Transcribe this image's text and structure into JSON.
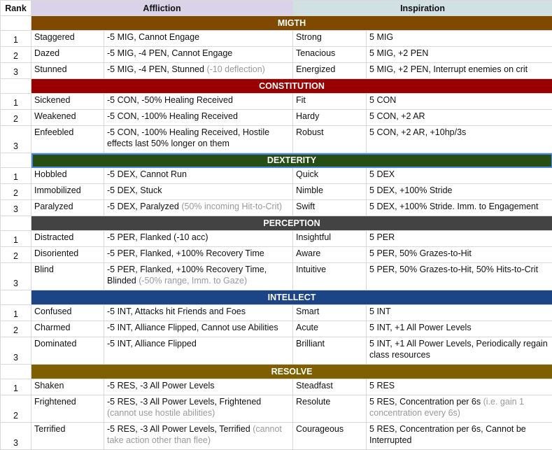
{
  "header": {
    "rank": "Rank",
    "affliction": "Affliction",
    "inspiration": "Inspiration"
  },
  "sections": [
    {
      "title": "MIGTH",
      "color": "#7f4a00",
      "rows": [
        {
          "rank": "1",
          "affliction": "Staggered",
          "affliction_effect": "-5 MIG, Cannot Engage",
          "affliction_note": "",
          "inspiration": "Strong",
          "inspiration_effect": "5 MIG",
          "inspiration_note": ""
        },
        {
          "rank": "2",
          "affliction": "Dazed",
          "affliction_effect": "-5 MIG, -4 PEN, Cannot Engage",
          "affliction_note": "",
          "inspiration": "Tenacious",
          "inspiration_effect": "5 MIG, +2 PEN",
          "inspiration_note": ""
        },
        {
          "rank": "3",
          "affliction": "Stunned",
          "affliction_effect": "-5 MIG, -4 PEN, Stunned",
          "affliction_note": "(-10 deflection)",
          "inspiration": "Energized",
          "inspiration_effect": "5 MIG, +2 PEN, Interrupt enemies on crit",
          "inspiration_note": ""
        }
      ]
    },
    {
      "title": "CONSTITUTION",
      "color": "#990000",
      "rows": [
        {
          "rank": "1",
          "affliction": "Sickened",
          "affliction_effect": "-5 CON, -50% Healing Received",
          "affliction_note": "",
          "inspiration": "Fit",
          "inspiration_effect": "5 CON",
          "inspiration_note": ""
        },
        {
          "rank": "2",
          "affliction": "Weakened",
          "affliction_effect": "-5 CON, -100% Healing Received",
          "affliction_note": "",
          "inspiration": "Hardy",
          "inspiration_effect": "5 CON, +2 AR",
          "inspiration_note": ""
        },
        {
          "rank": "3",
          "affliction": "Enfeebled",
          "affliction_effect": "-5 CON, -100% Healing Received, Hostile effects last 50% longer on them",
          "affliction_note": "",
          "inspiration": "Robust",
          "inspiration_effect": "5 CON, +2 AR, +10hp/3s",
          "inspiration_note": "",
          "tall": true
        }
      ]
    },
    {
      "title": "DEXTERITY",
      "color": "#274e13",
      "rows": [
        {
          "rank": "1",
          "affliction": "Hobbled",
          "affliction_effect": "-5 DEX, Cannot Run",
          "affliction_note": "",
          "inspiration": "Quick",
          "inspiration_effect": "5 DEX",
          "inspiration_note": ""
        },
        {
          "rank": "2",
          "affliction": "Immobilized",
          "affliction_effect": "-5 DEX, Stuck",
          "affliction_note": "",
          "inspiration": "Nimble",
          "inspiration_effect": "5 DEX, +100% Stride",
          "inspiration_note": ""
        },
        {
          "rank": "3",
          "affliction": "Paralyzed",
          "affliction_effect": "-5 DEX, Paralyzed",
          "affliction_note": "(50% incoming Hit-to-Crit)",
          "inspiration": "Swift",
          "inspiration_effect": "5 DEX, +100% Stride. Imm. to Engagement",
          "inspiration_note": ""
        }
      ]
    },
    {
      "title": "PERCEPTION",
      "color": "#434343",
      "rows": [
        {
          "rank": "1",
          "affliction": "Distracted",
          "affliction_effect": "-5 PER, Flanked (-10 acc)",
          "affliction_note": "",
          "inspiration": "Insightful",
          "inspiration_effect": "5 PER",
          "inspiration_note": ""
        },
        {
          "rank": "2",
          "affliction": "Disoriented",
          "affliction_effect": "-5 PER, Flanked, +100% Recovery Time",
          "affliction_note": "",
          "inspiration": "Aware",
          "inspiration_effect": "5 PER, 50% Grazes-to-Hit",
          "inspiration_note": ""
        },
        {
          "rank": "3",
          "affliction": "Blind",
          "affliction_effect": "-5 PER, Flanked, +100% Recovery Time, Blinded",
          "affliction_note": "(-50% range, Imm. to Gaze)",
          "inspiration": "Intuitive",
          "inspiration_effect": "5 PER, 50% Grazes-to-Hit, 50% Hits-to-Crit",
          "inspiration_note": "",
          "tall": true
        }
      ]
    },
    {
      "title": "INTELLECT",
      "color": "#1c4587",
      "rows": [
        {
          "rank": "1",
          "affliction": "Confused",
          "affliction_effect": "-5 INT, Attacks hit Friends and Foes",
          "affliction_note": "",
          "inspiration": "Smart",
          "inspiration_effect": "5 INT",
          "inspiration_note": ""
        },
        {
          "rank": "2",
          "affliction": "Charmed",
          "affliction_effect": "-5 INT, Alliance Flipped, Cannot use Abilities",
          "affliction_note": "",
          "inspiration": "Acute",
          "inspiration_effect": "5 INT, +1 All Power Levels",
          "inspiration_note": ""
        },
        {
          "rank": "3",
          "affliction": "Dominated",
          "affliction_effect": "-5 INT, Alliance Flipped",
          "affliction_note": "",
          "inspiration": "Brilliant",
          "inspiration_effect": "5 INT, +1 All Power Levels, Periodically regain class resources",
          "inspiration_note": "",
          "tall": true
        }
      ]
    },
    {
      "title": "RESOLVE",
      "color": "#7f6000",
      "rows": [
        {
          "rank": "1",
          "affliction": "Shaken",
          "affliction_effect": "-5 RES, -3 All Power Levels",
          "affliction_note": "",
          "inspiration": "Steadfast",
          "inspiration_effect": "5 RES",
          "inspiration_note": ""
        },
        {
          "rank": "2",
          "affliction": "Frightened",
          "affliction_effect": "-5 RES, -3 All Power Levels, Frightened",
          "affliction_note": "(cannot use hostile abilities)",
          "inspiration": "Resolute",
          "inspiration_effect": "5 RES, Concentration per 6s",
          "inspiration_note": "(i.e. gain 1 concentration every 6s)",
          "tall": true
        },
        {
          "rank": "3",
          "affliction": "Terrified",
          "affliction_effect": "-5 RES, -3 All Power Levels, Terrified",
          "affliction_note": "(cannot take action other than flee)",
          "inspiration": "Courageous",
          "inspiration_effect": "5 RES, Concentration per 6s, Cannot be Interrupted",
          "inspiration_note": "",
          "tall": true
        }
      ]
    }
  ]
}
